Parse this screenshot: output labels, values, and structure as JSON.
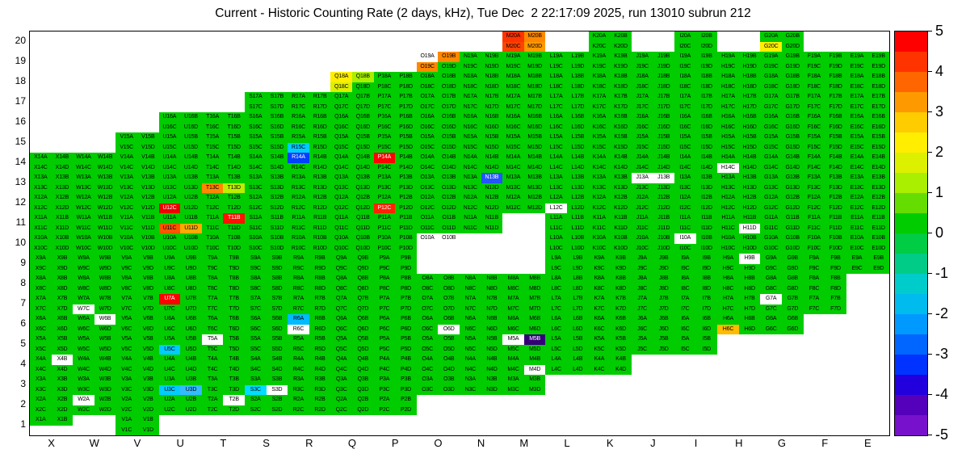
{
  "chart_data": {
    "type": "heatmap",
    "title": "Current - Historic Counting Rate (2 days, kHz), Tue Dec  2 22:17:09 2025, run 13010 subrun 212",
    "x_labels": [
      "X",
      "W",
      "V",
      "U",
      "T",
      "S",
      "R",
      "Q",
      "P",
      "O",
      "N",
      "M",
      "L",
      "K",
      "J",
      "I",
      "H",
      "G",
      "F",
      "E"
    ],
    "y_labels": [
      "20",
      "19",
      "18",
      "17",
      "16",
      "15",
      "14",
      "13",
      "12",
      "11",
      "10",
      "9",
      "8",
      "7",
      "6",
      "5",
      "4",
      "3",
      "2",
      "1"
    ],
    "subcell_letters": [
      "A",
      "B",
      "C",
      "D"
    ],
    "value_range": [
      -5,
      5
    ],
    "default_value": 0,
    "default_color": "#00cc00",
    "no_data_color": "#ffffff",
    "rows": [
      {
        "row": 20,
        "cols": [
          "M",
          "K",
          "I",
          "G"
        ]
      },
      {
        "row": 19,
        "cols": [
          "O",
          "N",
          "M",
          "L",
          "K",
          "J",
          "I",
          "H",
          "G",
          "F",
          "E"
        ]
      },
      {
        "row": 18,
        "cols": [
          "Q",
          "P",
          "O",
          "N",
          "M",
          "L",
          "K",
          "J",
          "I",
          "H",
          "G",
          "F",
          "E"
        ]
      },
      {
        "row": 17,
        "cols": [
          "S",
          "R",
          "Q",
          "P",
          "O",
          "N",
          "M",
          "L",
          "K",
          "J",
          "I",
          "H",
          "G",
          "F",
          "E"
        ]
      },
      {
        "row": 16,
        "cols": [
          "U",
          "T",
          "S",
          "R",
          "Q",
          "P",
          "O",
          "N",
          "M",
          "L",
          "K",
          "J",
          "I",
          "H",
          "G",
          "F",
          "E"
        ]
      },
      {
        "row": 15,
        "cols": [
          "V",
          "U",
          "T",
          "S",
          "R",
          "Q",
          "P",
          "O",
          "N",
          "M",
          "L",
          "K",
          "J",
          "I",
          "H",
          "G",
          "F",
          "E"
        ]
      },
      {
        "row": 14,
        "cols": [
          "X",
          "W",
          "V",
          "U",
          "T",
          "S",
          "R",
          "Q",
          "P",
          "O",
          "N",
          "M",
          "L",
          "K",
          "J",
          "I",
          "H",
          "G",
          "F",
          "E"
        ]
      },
      {
        "row": 13,
        "cols": [
          "X",
          "W",
          "V",
          "U",
          "T",
          "S",
          "R",
          "Q",
          "P",
          "O",
          "N",
          "M",
          "L",
          "K",
          "J",
          "I",
          "H",
          "G",
          "F",
          "E"
        ]
      },
      {
        "row": 12,
        "cols": [
          "X",
          "W",
          "V",
          "U",
          "T",
          "S",
          "R",
          "Q",
          "P",
          "O",
          "N",
          "M",
          "L",
          "K",
          "J",
          "I",
          "H",
          "G",
          "F",
          "E"
        ]
      },
      {
        "row": 11,
        "cols": [
          "X",
          "W",
          "V",
          "U",
          "T",
          "S",
          "R",
          "Q",
          "P",
          "O",
          "N",
          "L",
          "K",
          "J",
          "I",
          "H",
          "G",
          "F",
          "E"
        ]
      },
      {
        "row": 10,
        "cols": [
          "X",
          "W",
          "V",
          "U",
          "T",
          "S",
          "R",
          "Q",
          "P",
          "O",
          "L",
          "K",
          "J",
          "I",
          "H",
          "G",
          "F",
          "E"
        ]
      },
      {
        "row": 9,
        "cols": [
          "X",
          "W",
          "V",
          "U",
          "T",
          "S",
          "R",
          "Q",
          "P",
          "L",
          "K",
          "J",
          "I",
          "H",
          "G",
          "F",
          "E"
        ]
      },
      {
        "row": 8,
        "cols": [
          "X",
          "W",
          "V",
          "U",
          "T",
          "S",
          "R",
          "Q",
          "P",
          "O",
          "N",
          "M",
          "L",
          "K",
          "J",
          "I",
          "H",
          "G",
          "F"
        ]
      },
      {
        "row": 7,
        "cols": [
          "X",
          "W",
          "V",
          "U",
          "T",
          "S",
          "R",
          "Q",
          "P",
          "O",
          "N",
          "M",
          "L",
          "K",
          "J",
          "I",
          "H",
          "G",
          "F"
        ]
      },
      {
        "row": 6,
        "cols": [
          "X",
          "W",
          "V",
          "U",
          "T",
          "S",
          "R",
          "Q",
          "P",
          "O",
          "N",
          "M",
          "L",
          "K",
          "J",
          "I",
          "H",
          "G"
        ]
      },
      {
        "row": 5,
        "cols": [
          "X",
          "W",
          "V",
          "U",
          "T",
          "S",
          "R",
          "Q",
          "P",
          "O",
          "N",
          "M",
          "L",
          "K",
          "J",
          "I"
        ]
      },
      {
        "row": 4,
        "cols": [
          "X",
          "W",
          "V",
          "U",
          "T",
          "S",
          "R",
          "Q",
          "P",
          "O",
          "N",
          "M",
          "L",
          "K"
        ]
      },
      {
        "row": 3,
        "cols": [
          "X",
          "W",
          "V",
          "U",
          "T",
          "S",
          "R",
          "Q",
          "P",
          "O",
          "N",
          "M"
        ]
      },
      {
        "row": 2,
        "cols": [
          "X",
          "W",
          "V",
          "U",
          "T",
          "S",
          "R",
          "Q",
          "P"
        ]
      },
      {
        "row": 1,
        "cols": [
          "X",
          "V"
        ]
      }
    ],
    "partial_blocks": {
      "X1": [
        "A",
        "B"
      ],
      "O10": [
        "A",
        "B"
      ]
    },
    "no_data_cells": [
      "O19A",
      "H14C",
      "J13A",
      "J13B",
      "L12C",
      "H11D",
      "O10A",
      "O10B",
      "I10A",
      "H9B",
      "G7A",
      "W7C",
      "W6B",
      "R6C",
      "O6D",
      "T5A",
      "M5A",
      "M4D",
      "X4B",
      "S3D",
      "W2A",
      "T2B"
    ],
    "anomalies": [
      {
        "cell": "M20A",
        "color": "#ff3300",
        "value": 4.6
      },
      {
        "cell": "M20B",
        "color": "#ff8800",
        "value": 3.6
      },
      {
        "cell": "M20C",
        "color": "#ff4400",
        "value": 4.4
      },
      {
        "cell": "M20D",
        "color": "#ff9900",
        "value": 3.4
      },
      {
        "cell": "G20C",
        "color": "#ffee00",
        "value": 2.7
      },
      {
        "cell": "O19B",
        "color": "#ff8800",
        "value": 3.6
      },
      {
        "cell": "O19C",
        "color": "#ff8800",
        "value": 3.6
      },
      {
        "cell": "Q18A",
        "color": "#ffee00",
        "value": 2.7
      },
      {
        "cell": "Q18B",
        "color": "#aaee00",
        "value": 2.1
      },
      {
        "cell": "Q18C",
        "color": "#ddee00",
        "value": 2.4
      },
      {
        "cell": "R15C",
        "color": "#00ccff",
        "value": -1.8
      },
      {
        "cell": "R14A",
        "color": "#0040ff",
        "value": -3.3
      },
      {
        "cell": "P14A",
        "color": "#ff0000",
        "value": 5.0
      },
      {
        "cell": "T13C",
        "color": "#ff8800",
        "value": 3.6
      },
      {
        "cell": "T13D",
        "color": "#bbee00",
        "value": 2.0
      },
      {
        "cell": "N13B",
        "color": "#2255ff",
        "value": -2.9
      },
      {
        "cell": "U12C",
        "color": "#ee0000",
        "value": 4.9
      },
      {
        "cell": "P12C",
        "color": "#ff2200",
        "value": 4.7
      },
      {
        "cell": "T11B",
        "color": "#ff1100",
        "value": 4.8
      },
      {
        "cell": "U11C",
        "color": "#ff5500",
        "value": 4.1
      },
      {
        "cell": "U11D",
        "color": "#ffaa00",
        "value": 3.2
      },
      {
        "cell": "U7A",
        "color": "#ff0000",
        "value": 5.0
      },
      {
        "cell": "R6A",
        "color": "#00bbff",
        "value": -2.0
      },
      {
        "cell": "H6C",
        "color": "#ffbb00",
        "value": 3.1
      },
      {
        "cell": "U5C",
        "color": "#00ccff",
        "value": -1.8
      },
      {
        "cell": "M5B",
        "color": "#330077",
        "value": -4.8
      },
      {
        "cell": "U3C",
        "color": "#00ccff",
        "value": -1.8
      },
      {
        "cell": "U3D",
        "color": "#33bbff",
        "value": -2.2
      },
      {
        "cell": "S3C",
        "color": "#00ddff",
        "value": -1.6
      }
    ],
    "colorbar": {
      "position": "right",
      "max": 5,
      "min": -5,
      "tick_labels": [
        "5",
        "4",
        "3",
        "2",
        "1",
        "0",
        "-1",
        "-2",
        "-3",
        "-4",
        "-5"
      ],
      "bands": [
        "#ff0000",
        "#ff3300",
        "#ff6600",
        "#ff9900",
        "#ffcc00",
        "#ffee00",
        "#ddf000",
        "#aaee00",
        "#66dd00",
        "#00cc00",
        "#00cc44",
        "#00cc88",
        "#00cccc",
        "#00bbee",
        "#0099ff",
        "#0066ff",
        "#0033ff",
        "#2200dd",
        "#5500bb",
        "#7711cc"
      ]
    }
  }
}
